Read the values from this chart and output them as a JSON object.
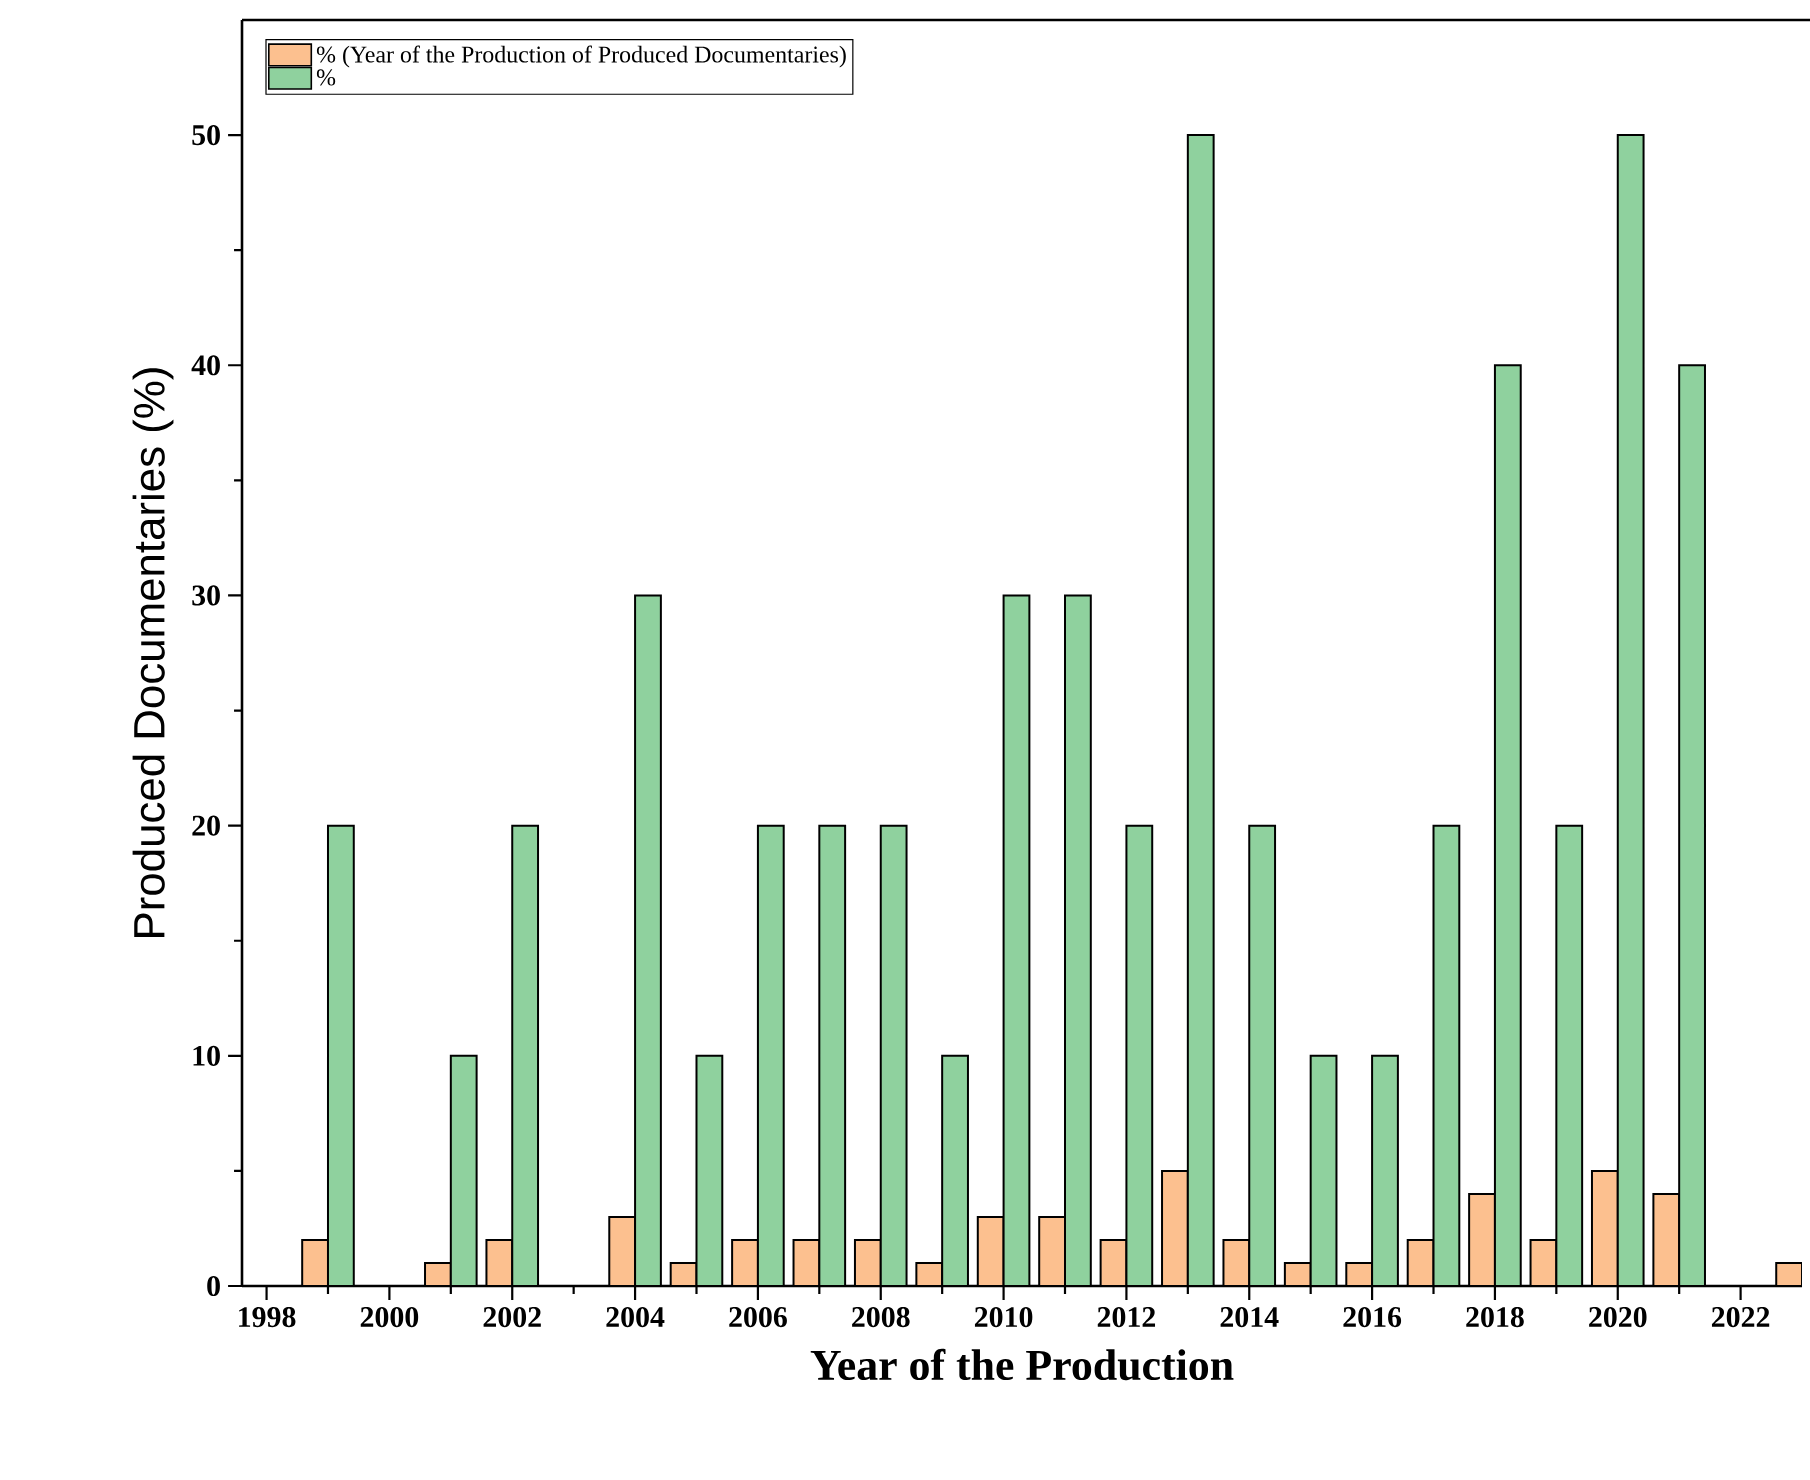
{
  "chart_data": {
    "type": "bar",
    "xlabel": "Year of the Production",
    "ylabel": "Produced Documentaries (%)",
    "x": [
      1999,
      2000,
      2001,
      2002,
      2003,
      2004,
      2005,
      2006,
      2007,
      2008,
      2009,
      2010,
      2011,
      2012,
      2013,
      2014,
      2015,
      2016,
      2017,
      2018,
      2019,
      2020,
      2021,
      2022,
      2023
    ],
    "series": [
      {
        "name": "% (Year of the Production of Produced Documentaries)",
        "color": "#fcc08f",
        "values": [
          2,
          null,
          1,
          2,
          null,
          3,
          1,
          2,
          2,
          2,
          1,
          3,
          3,
          2,
          5,
          2,
          1,
          1,
          2,
          4,
          2,
          5,
          4,
          null,
          1
        ]
      },
      {
        "name": "%",
        "color": "#8fd19e",
        "values": [
          20,
          null,
          10,
          20,
          null,
          30,
          10,
          20,
          20,
          20,
          10,
          30,
          30,
          20,
          50,
          20,
          10,
          10,
          20,
          40,
          20,
          50,
          40,
          null,
          null
        ]
      }
    ],
    "xlim": [
      1997.6,
      2023
    ],
    "ylim": [
      0,
      55
    ],
    "xticks": [
      1998,
      2000,
      2002,
      2004,
      2006,
      2008,
      2010,
      2012,
      2014,
      2016,
      2018,
      2020,
      2022
    ],
    "yticks": [
      0,
      10,
      20,
      30,
      40,
      50
    ],
    "grid": false,
    "legend": "top left"
  }
}
